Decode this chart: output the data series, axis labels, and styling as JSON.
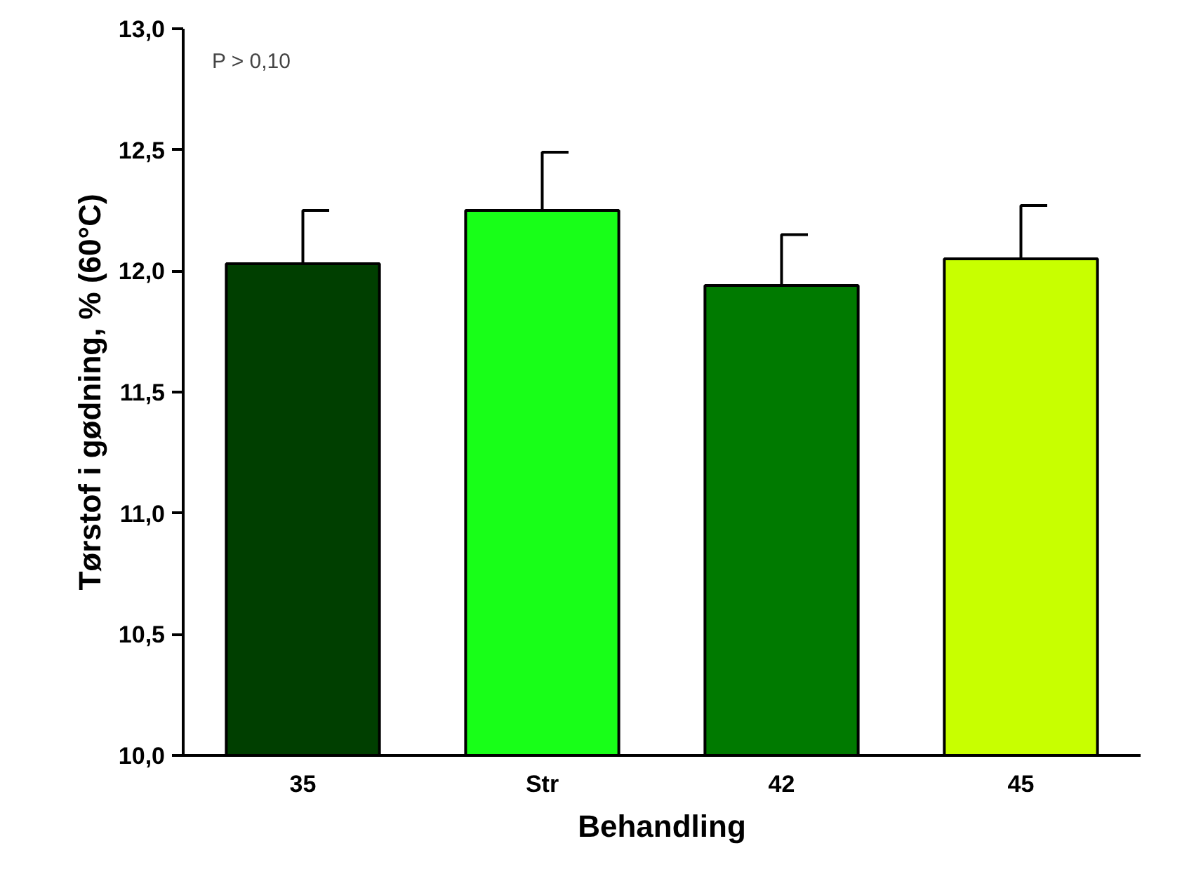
{
  "chart_data": {
    "type": "bar",
    "xlabel": "Behandling",
    "ylabel": "Tørstof i gødning, % (60°C)",
    "categories": [
      "35",
      "Str",
      "42",
      "45"
    ],
    "values": [
      12.03,
      12.25,
      11.94,
      12.05
    ],
    "colors": [
      "#003f00",
      "#18ff18",
      "#007a00",
      "#c8ff00"
    ],
    "errors": [
      [
        12.03,
        12.25
      ],
      [
        12.25,
        12.49
      ],
      [
        11.94,
        12.15
      ],
      [
        12.05,
        12.27
      ]
    ],
    "ylim": [
      10,
      13
    ],
    "yticks": [
      {
        "value": 10,
        "label": "10,0"
      },
      {
        "value": 10.5,
        "label": "10,5"
      },
      {
        "value": 11,
        "label": "11,0"
      },
      {
        "value": 11.5,
        "label": "11,5"
      },
      {
        "value": 12,
        "label": "12,0"
      },
      {
        "value": 12.5,
        "label": "12,5"
      },
      {
        "value": 13,
        "label": "13,0"
      }
    ],
    "grid": false,
    "annotations": [
      "P > 0,10"
    ]
  }
}
